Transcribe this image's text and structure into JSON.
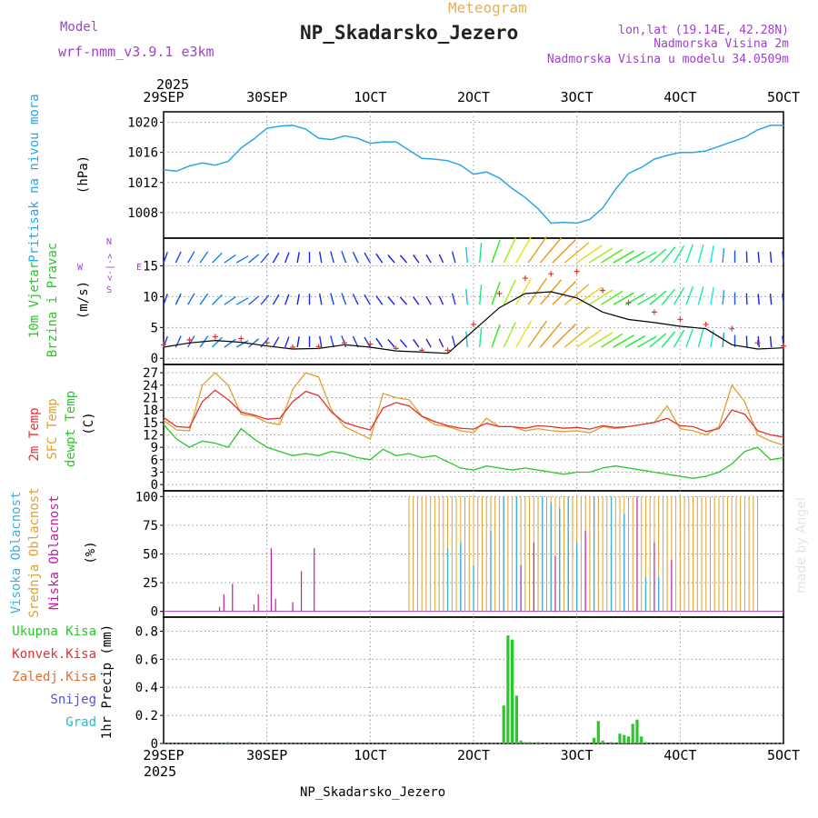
{
  "header": {
    "model_label": "Model",
    "model_name": "wrf-nmm_v3.9.1 e3km",
    "meteogram_label": "Meteogram",
    "station_title": "NP_Skadarsko_Jezero",
    "lonlat": "lon,lat (19.14E, 42.28N)",
    "altitude": "Nadmorska Visina 2m",
    "model_altitude": "Nadmorska Visina u modelu 34.0509m"
  },
  "footer": {
    "station": "NP_Skadarsko_Jezero",
    "watermark": "made by Angel"
  },
  "x_axis": {
    "year": "2025",
    "ticks": [
      "29SEP",
      "30SEP",
      "1OCT",
      "2OCT",
      "3OCT",
      "4OCT",
      "5OCT"
    ]
  },
  "panels": {
    "pressure": {
      "title": "Pritisak na nivou mora",
      "unit": "(hPa)"
    },
    "wind": {
      "title_line1": "10m Vjetar",
      "title_line2": "Brzina i Pravac",
      "unit": "(m/s)",
      "compass": {
        "north": "N",
        "west": "W",
        "east": "E",
        "south": "S",
        "arrows": "<-|->"
      }
    },
    "temperature": {
      "label_2m": "2m Temp",
      "label_sfc": "SFC Temp",
      "label_dewpt": "dewpt Temp",
      "unit": "(C)"
    },
    "clouds": {
      "label_high": "Visoka Oblacnost",
      "label_mid": "Srednja Oblacnost",
      "label_low": "Niska Oblacnost",
      "unit": "(%)"
    },
    "precip": {
      "label_total": "Ukupna Kisa",
      "label_conv": "Konvek.Kisa",
      "label_frz": "Zaledj.Kisa",
      "label_snow": "Snijeg",
      "label_hail": "Grad",
      "unit": "1hr Precip (mm)"
    }
  },
  "colors": {
    "pressure": "#2aa6e6",
    "t2m": "#e63030",
    "tsfc": "#e0a030",
    "dewpt": "#28c828",
    "cloud_high": "#40b0e0",
    "cloud_mid": "#e0a030",
    "cloud_low": "#c020a0",
    "precip": "#28c828",
    "title_text": "#222222",
    "header_purple": "#a040d0",
    "meteogram_orange": "#e8b050"
  },
  "chart_data": [
    {
      "type": "line",
      "title": "Pritisak na nivou mora",
      "ylabel": "(hPa)",
      "ylim": [
        1004.6,
        1021.4
      ],
      "y_ticks": [
        "1020",
        "1016",
        "1012",
        "1008"
      ],
      "x_hours": [
        0,
        3,
        6,
        9,
        12,
        15,
        18,
        21,
        24,
        27,
        30,
        33,
        36,
        39,
        42,
        45,
        48,
        51,
        54,
        57,
        60,
        63,
        66,
        69,
        72,
        75,
        78,
        81,
        84,
        87,
        90,
        93,
        96,
        99,
        102,
        105,
        108,
        111,
        114,
        117,
        120,
        123,
        126,
        129,
        132,
        135,
        138,
        141,
        144
      ],
      "series": [
        {
          "name": "MSLP",
          "values": [
            1013.7,
            1013.5,
            1014.2,
            1014.6,
            1014.3,
            1014.8,
            1016.6,
            1017.8,
            1019.2,
            1019.5,
            1019.6,
            1019.1,
            1017.9,
            1017.7,
            1018.2,
            1017.9,
            1017.2,
            1017.4,
            1017.4,
            1016.3,
            1015.2,
            1015.1,
            1014.9,
            1014.3,
            1013.1,
            1013.4,
            1012.6,
            1011.2,
            1010.0,
            1008.5,
            1006.6,
            1006.7,
            1006.6,
            1007.1,
            1008.6,
            1011.1,
            1013.2,
            1014.0,
            1015.1,
            1015.6,
            1016.0,
            1016.0,
            1016.2,
            1016.8,
            1017.4,
            1018.0,
            1019.0,
            1019.6,
            1019.6
          ]
        }
      ]
    },
    {
      "type": "line",
      "title": "10m Vjetar Brzina i Pravac",
      "ylabel": "(m/s)",
      "ylim": [
        -1,
        19.5
      ],
      "y_ticks": [
        "15",
        "10",
        "5",
        "0"
      ],
      "series": [
        {
          "name": "wind speed",
          "x_hours": [
            0,
            6,
            12,
            18,
            24,
            30,
            36,
            42,
            48,
            54,
            60,
            66,
            72,
            78,
            84,
            90,
            96,
            102,
            108,
            114,
            120,
            126,
            132,
            138,
            144
          ],
          "values": [
            1.8,
            2.5,
            2.9,
            2.6,
            2.0,
            1.5,
            1.6,
            2.2,
            1.8,
            1.2,
            1.0,
            0.8,
            4.5,
            8.2,
            10.5,
            10.8,
            9.8,
            7.5,
            6.3,
            5.8,
            5.2,
            4.8,
            2.2,
            1.5,
            1.7
          ]
        },
        {
          "name": "gust",
          "x_hours": [
            0,
            6,
            12,
            18,
            24,
            30,
            36,
            42,
            48,
            54,
            60,
            66,
            72,
            78,
            84,
            90,
            96,
            102,
            108,
            114,
            120,
            126,
            132,
            138,
            144
          ],
          "values": [
            2.2,
            3.0,
            3.5,
            3.2,
            2.5,
            1.8,
            1.9,
            2.5,
            2.3,
            1.6,
            1.3,
            1.3,
            5.5,
            10.5,
            13.0,
            13.7,
            14.1,
            11.0,
            9.0,
            7.5,
            6.3,
            5.5,
            4.8,
            2.5,
            2.0
          ]
        }
      ],
      "wind_rows": [
        15.5,
        8.7,
        1.8
      ],
      "wind_dirs_deg": [
        200,
        205,
        210,
        215,
        225,
        235,
        240,
        230,
        220,
        210,
        200,
        190,
        180,
        170,
        165,
        160,
        155,
        150,
        145,
        140,
        140,
        145,
        150,
        155,
        165,
        175,
        185,
        200,
        205,
        210,
        215,
        220,
        225,
        230,
        235,
        238,
        238,
        240,
        240,
        240,
        230,
        220,
        210,
        200,
        195,
        190,
        185,
        180,
        178,
        175,
        175,
        175
      ]
    },
    {
      "type": "line",
      "title": "Temperature",
      "ylabel": "(C)",
      "ylim": [
        -1.5,
        29
      ],
      "y_ticks": [
        "27",
        "24",
        "21",
        "18",
        "15",
        "12",
        "9",
        "6",
        "3",
        "0"
      ],
      "x_hours": [
        0,
        3,
        6,
        9,
        12,
        15,
        18,
        21,
        24,
        27,
        30,
        33,
        36,
        39,
        42,
        45,
        48,
        51,
        54,
        57,
        60,
        63,
        66,
        69,
        72,
        75,
        78,
        81,
        84,
        87,
        90,
        93,
        96,
        99,
        102,
        105,
        108,
        111,
        114,
        117,
        120,
        123,
        126,
        129,
        132,
        135,
        138,
        141,
        144
      ],
      "series": [
        {
          "name": "2m Temp",
          "values": [
            16.2,
            14.0,
            13.8,
            20.0,
            22.8,
            20.5,
            17.5,
            16.8,
            15.8,
            16.0,
            20.0,
            22.5,
            21.5,
            17.5,
            15.0,
            14.0,
            13.2,
            18.5,
            19.8,
            19.0,
            16.5,
            15.2,
            14.2,
            13.6,
            13.4,
            14.8,
            14.0,
            14.0,
            13.6,
            14.2,
            14.0,
            13.6,
            13.8,
            13.4,
            14.2,
            13.8,
            14.0,
            14.5,
            15.0,
            16.0,
            14.2,
            14.0,
            12.8,
            13.5,
            18.0,
            17.0,
            13.0,
            12.0,
            11.5
          ]
        },
        {
          "name": "SFC Temp",
          "values": [
            15.5,
            13.2,
            13.0,
            24.0,
            27.0,
            24.0,
            17.0,
            16.5,
            15.0,
            14.5,
            23.0,
            27.0,
            26.0,
            18.0,
            14.0,
            12.5,
            11.0,
            22.0,
            21.0,
            20.5,
            16.5,
            14.5,
            14.0,
            13.0,
            12.5,
            16.0,
            14.0,
            14.0,
            13.0,
            13.5,
            13.0,
            12.8,
            13.0,
            12.5,
            14.0,
            13.5,
            14.0,
            14.5,
            15.0,
            19.0,
            13.5,
            13.0,
            12.0,
            14.0,
            24.0,
            20.0,
            12.0,
            10.5,
            9.5
          ]
        },
        {
          "name": "dewpt Temp",
          "values": [
            14.5,
            11.0,
            9.0,
            10.5,
            10.0,
            9.0,
            13.5,
            11.0,
            9.0,
            8.0,
            7.0,
            7.5,
            7.0,
            8.0,
            7.5,
            6.5,
            6.0,
            8.5,
            7.0,
            7.5,
            6.5,
            7.0,
            5.5,
            4.0,
            3.5,
            4.5,
            4.0,
            3.5,
            4.0,
            3.5,
            3.0,
            2.5,
            3.0,
            3.0,
            4.0,
            4.5,
            4.0,
            3.5,
            3.0,
            2.5,
            2.0,
            1.5,
            2.0,
            3.0,
            5.0,
            8.0,
            9.0,
            6.0,
            6.5
          ]
        }
      ]
    },
    {
      "type": "bar",
      "title": "Oblacnost",
      "ylabel": "(%)",
      "ylim": [
        -5,
        105
      ],
      "y_ticks": [
        "100",
        "75",
        "50",
        "25",
        "0"
      ],
      "mid_clouds": {
        "start_hour": 57,
        "end_hour": 138,
        "value": 100
      },
      "low_clouds_hours": [
        13,
        14,
        16,
        21,
        22,
        25,
        26,
        30,
        32,
        35,
        83,
        86,
        91,
        94,
        98,
        104,
        107,
        110,
        114,
        118
      ],
      "low_clouds_values": [
        4,
        15,
        24,
        6,
        15,
        55,
        11,
        8,
        35,
        55,
        40,
        60,
        48,
        52,
        70,
        55,
        45,
        100,
        60,
        45
      ],
      "high_clouds_hours": [
        66,
        69,
        72,
        76,
        79,
        82,
        88,
        90,
        92,
        94,
        96,
        100,
        104,
        107,
        112,
        115
      ],
      "high_clouds_values": [
        55,
        60,
        40,
        70,
        100,
        100,
        100,
        95,
        90,
        100,
        60,
        100,
        100,
        85,
        30,
        30
      ]
    },
    {
      "type": "bar",
      "title": "1hr Precip",
      "ylabel": "1hr Precip (mm)",
      "ylim": [
        0,
        0.9
      ],
      "y_ticks": [
        "0.8",
        "0.6",
        "0.4",
        "0.2",
        "0"
      ],
      "x_hours": [
        15,
        20,
        79,
        80,
        81,
        82,
        83,
        84,
        85,
        87,
        100,
        101,
        102,
        104,
        106,
        107,
        108,
        109,
        110,
        111,
        112
      ],
      "values": [
        0.01,
        0.01,
        0.27,
        0.77,
        0.74,
        0.34,
        0.02,
        0.01,
        0.01,
        0.01,
        0.04,
        0.16,
        0.02,
        0.01,
        0.07,
        0.06,
        0.05,
        0.14,
        0.17,
        0.05,
        0.01
      ]
    }
  ]
}
